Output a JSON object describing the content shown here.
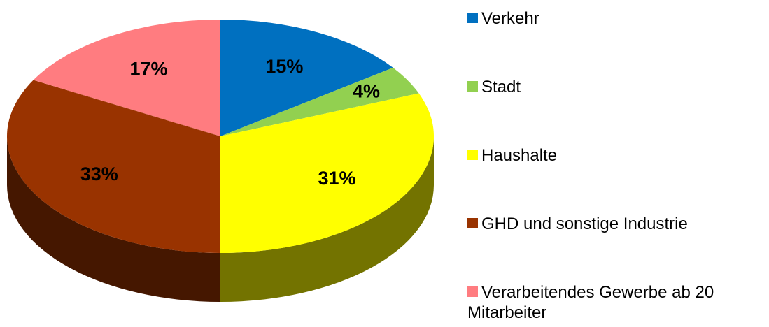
{
  "chart_data": {
    "type": "pie",
    "categories": [
      "Verkehr",
      "Stadt",
      "Haushalte",
      "GHD und sonstige Industrie",
      "Verarbeitendes Gewerbe ab 20 Mitarbeiter"
    ],
    "values": [
      15,
      4,
      31,
      33,
      17
    ],
    "value_labels": [
      "15%",
      "4%",
      "31%",
      "33%",
      "17%"
    ],
    "colors": [
      "#0070c0",
      "#92d050",
      "#ffff00",
      "#993300",
      "#ff7c80"
    ],
    "legend": "right"
  }
}
